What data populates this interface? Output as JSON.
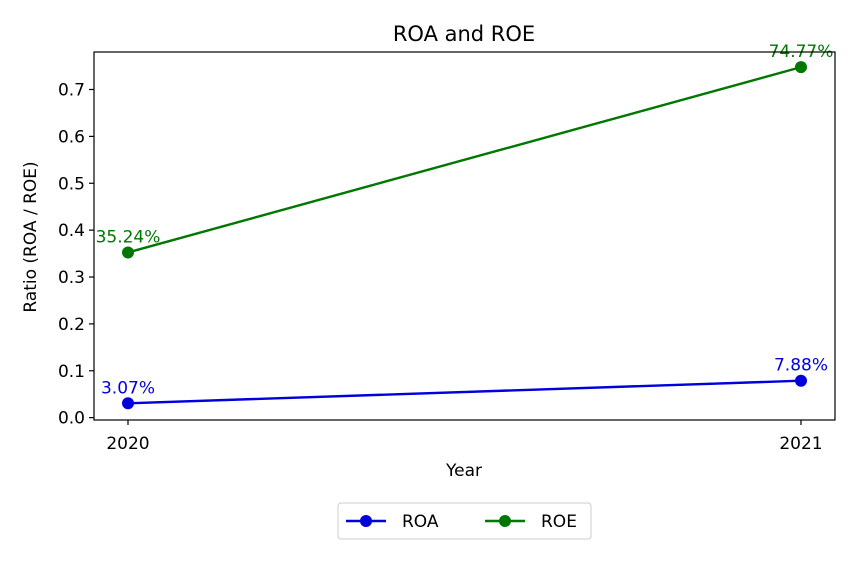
{
  "chart_data": {
    "type": "line",
    "title": "ROA and ROE",
    "xlabel": "Year",
    "ylabel": "Ratio (ROA / ROE)",
    "categories": [
      "2020",
      "2021"
    ],
    "ylim": [
      -0.005,
      0.78
    ],
    "yticks": [
      0.0,
      0.1,
      0.2,
      0.3,
      0.4,
      0.5,
      0.6,
      0.7
    ],
    "ytick_labels": [
      "0.0",
      "0.1",
      "0.2",
      "0.3",
      "0.4",
      "0.5",
      "0.6",
      "0.7"
    ],
    "grid": false,
    "legend": "bottom-center",
    "series": [
      {
        "name": "ROA",
        "color": "#0000dd",
        "values": [
          0.0307,
          0.0788
        ],
        "labels": [
          "3.07%",
          "7.88%"
        ]
      },
      {
        "name": "ROE",
        "color": "#007700",
        "values": [
          0.3524,
          0.7477
        ],
        "labels": [
          "35.24%",
          "74.77%"
        ]
      }
    ]
  }
}
